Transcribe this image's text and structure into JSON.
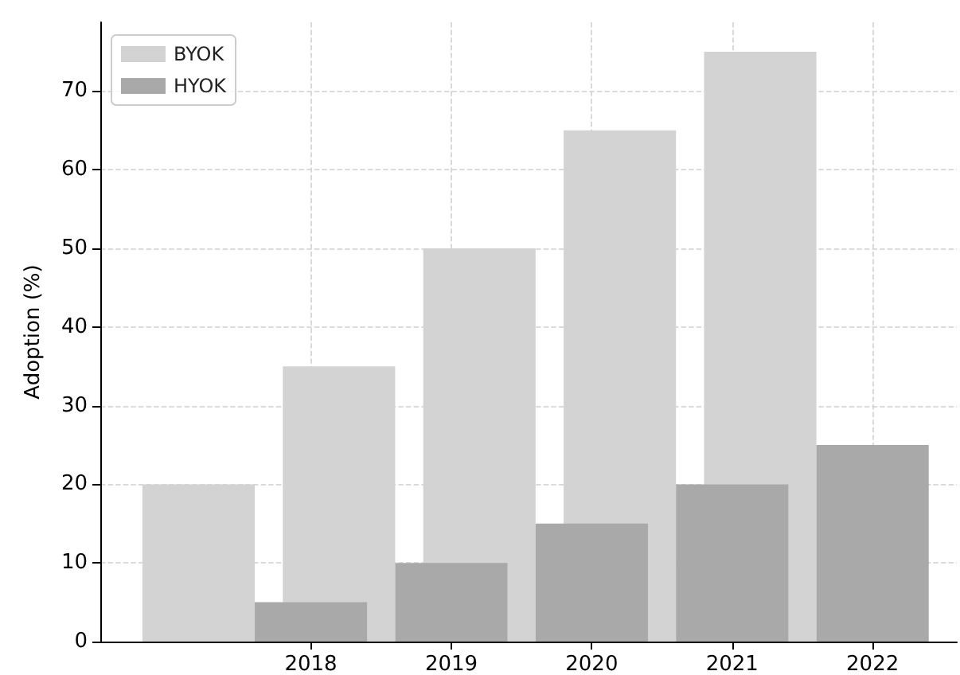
{
  "chart_data": {
    "type": "bar",
    "ylabel": "Adoption (%)",
    "series": [
      {
        "name": "BYOK",
        "color": "#d3d3d3",
        "x": [
          2017.2,
          2018.2,
          2019.2,
          2020.2,
          2021.2
        ],
        "values": [
          20,
          35,
          50,
          65,
          75
        ]
      },
      {
        "name": "HYOK",
        "color": "#a9a9a9",
        "x": [
          2018,
          2019,
          2020,
          2021,
          2022
        ],
        "values": [
          5,
          10,
          15,
          20,
          25
        ]
      }
    ],
    "xlim": [
      2016.5,
      2022.6
    ],
    "xticks": [
      2018,
      2019,
      2020,
      2021,
      2022
    ],
    "ylim": [
      0,
      78.75
    ],
    "yticks": [
      0,
      10,
      20,
      30,
      40,
      50,
      60,
      70
    ],
    "grid": true,
    "line_style": "dashed",
    "legend": "top left"
  }
}
